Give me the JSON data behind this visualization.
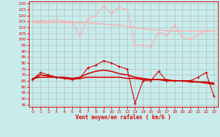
{
  "background_color": "#c8ecec",
  "grid_color": "#b0b0b0",
  "xlabel": "Vent moyen/en rafales ( km/h )",
  "xlabel_color": "#dd0000",
  "tick_color": "#dd0000",
  "x_ticks": [
    0,
    1,
    2,
    3,
    4,
    5,
    6,
    7,
    8,
    9,
    10,
    11,
    12,
    13,
    14,
    15,
    16,
    17,
    18,
    19,
    20,
    21,
    22,
    23
  ],
  "y_ticks": [
    45,
    50,
    55,
    60,
    65,
    70,
    75,
    80,
    85,
    90,
    95,
    100,
    105,
    110,
    115,
    120,
    125,
    130
  ],
  "ylim": [
    43,
    132
  ],
  "xlim": [
    -0.5,
    23.5
  ],
  "line_rafales_smooth": {
    "color": "#ffaaaa",
    "linewidth": 1.0,
    "values": [
      114,
      114,
      114,
      114,
      114,
      114,
      114,
      114,
      113,
      113,
      112,
      112,
      111,
      110,
      109,
      108,
      108,
      107,
      107,
      107,
      107,
      107,
      107,
      107
    ]
  },
  "line_rafales": {
    "color": "#ffaaaa",
    "marker": "+",
    "markersize": 3,
    "linewidth": 0.8,
    "values": [
      115,
      116,
      115,
      117,
      115,
      115,
      103,
      117,
      120,
      128,
      122,
      127,
      125,
      95,
      95,
      94,
      106,
      103,
      112,
      102,
      100,
      104,
      107,
      107
    ]
  },
  "line_moyen_smooth1": {
    "color": "#dd0000",
    "linewidth": 1.2,
    "values": [
      67,
      68,
      68,
      68,
      67,
      67,
      67,
      68,
      68,
      68,
      68,
      68,
      67,
      67,
      66,
      66,
      66,
      65,
      65,
      65,
      64,
      64,
      63,
      62
    ]
  },
  "line_moyen_smooth2": {
    "color": "#cc0000",
    "linewidth": 1.2,
    "values": [
      66,
      70,
      69,
      68,
      68,
      67,
      68,
      71,
      73,
      74,
      73,
      71,
      70,
      68,
      67,
      66,
      66,
      66,
      65,
      65,
      65,
      64,
      64,
      63
    ]
  },
  "line_moyen": {
    "color": "#cc0000",
    "marker": "+",
    "markersize": 3,
    "linewidth": 0.8,
    "values": [
      66,
      72,
      70,
      68,
      67,
      66,
      67,
      76,
      78,
      82,
      80,
      77,
      75,
      46,
      65,
      65,
      73,
      65,
      65,
      65,
      65,
      68,
      72,
      52
    ]
  }
}
